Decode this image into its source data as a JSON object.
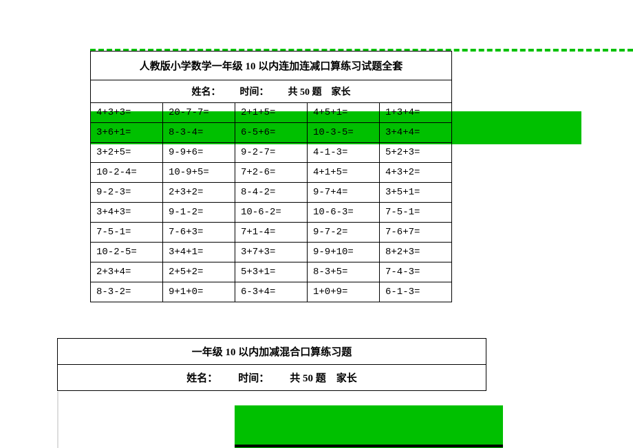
{
  "colors": {
    "green": "#00c000",
    "black": "#000000",
    "border_light": "#dddddd",
    "white": "#ffffff"
  },
  "table1": {
    "title_prefix": "人教版小学数学一年级 ",
    "title_num": "10",
    "title_suffix": " 以内连加连减口算练习试题全套",
    "info_name": "姓名：",
    "info_time": "时间：",
    "info_total_prefix": "共 ",
    "info_total_num": "50",
    "info_total_suffix": " 题",
    "info_parent": "家长",
    "rows": [
      [
        "4+3+3=",
        "20-7-7=",
        "2+1+5=",
        "4+5+1=",
        "1+3+4="
      ],
      [
        "3+6+1=",
        "8-3-4=",
        "6-5+6=",
        "10-3-5=",
        "3+4+4="
      ],
      [
        "3+2+5=",
        "9-9+6=",
        "9-2-7=",
        "4-1-3=",
        "5+2+3="
      ],
      [
        "10-2-4=",
        "10-9+5=",
        "7+2-6=",
        "4+1+5=",
        "4+3+2="
      ],
      [
        "9-2-3=",
        "2+3+2=",
        "8-4-2=",
        "9-7+4=",
        "3+5+1="
      ],
      [
        "3+4+3=",
        "9-1-2=",
        "10-6-2=",
        "10-6-3=",
        "7-5-1="
      ],
      [
        "7-5-1=",
        "7-6+3=",
        "7+1-4=",
        "9-7-2=",
        "7-6+7="
      ],
      [
        "10-2-5=",
        "3+4+1=",
        "3+7+3=",
        "9-9+10=",
        "8+2+3="
      ],
      [
        "2+3+4=",
        "2+5+2=",
        "5+3+1=",
        "8-3+5=",
        "7-4-3="
      ],
      [
        "8-3-2=",
        "9+1+0=",
        "6-3+4=",
        "1+0+9=",
        "6-1-3="
      ]
    ]
  },
  "table2": {
    "title_prefix": "一年级 ",
    "title_num": "10",
    "title_suffix": " 以内加减混合口算练习题",
    "info_name": "姓名：",
    "info_time": "时间：",
    "info_total_prefix": "共 ",
    "info_total_num": "50",
    "info_total_suffix": " 题",
    "info_parent": "家长"
  }
}
